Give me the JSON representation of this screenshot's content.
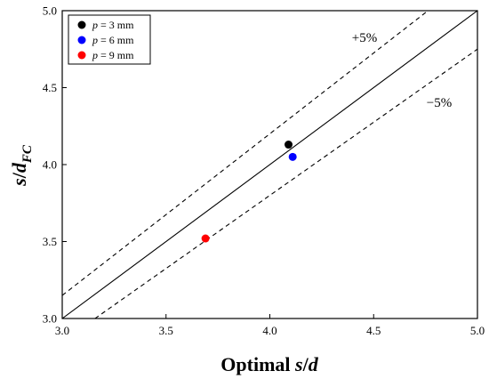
{
  "chart_data": {
    "type": "scatter",
    "xlabel": "Optimal s/d",
    "ylabel": "s/dFC",
    "xlim": [
      3.0,
      5.0
    ],
    "ylim": [
      3.0,
      5.0
    ],
    "xticks": [
      "3.0",
      "3.5",
      "4.0",
      "4.5",
      "5.0"
    ],
    "yticks": [
      "3.0",
      "3.5",
      "4.0",
      "4.5",
      "5.0"
    ],
    "grid": false,
    "legend_position": "top-left",
    "series": [
      {
        "name": "p = 3 mm",
        "name_var": "p",
        "name_rest": " = 3 mm",
        "color": "#000000",
        "points": [
          {
            "x": 4.09,
            "y": 4.13
          }
        ]
      },
      {
        "name": "p = 6 mm",
        "name_var": "p",
        "name_rest": " = 6 mm",
        "color": "#0000ff",
        "points": [
          {
            "x": 4.11,
            "y": 4.05
          }
        ]
      },
      {
        "name": "p = 9 mm",
        "name_var": "p",
        "name_rest": " = 9 mm",
        "color": "#ff0000",
        "points": [
          {
            "x": 3.69,
            "y": 3.52
          }
        ]
      }
    ],
    "reference_lines": [
      {
        "kind": "identity",
        "factor": 1.0,
        "style": "solid",
        "label": ""
      },
      {
        "kind": "upper",
        "factor": 1.05,
        "style": "dashed",
        "label": "+5%"
      },
      {
        "kind": "lower",
        "factor": 0.95,
        "style": "dashed",
        "label": "−5%"
      }
    ]
  }
}
